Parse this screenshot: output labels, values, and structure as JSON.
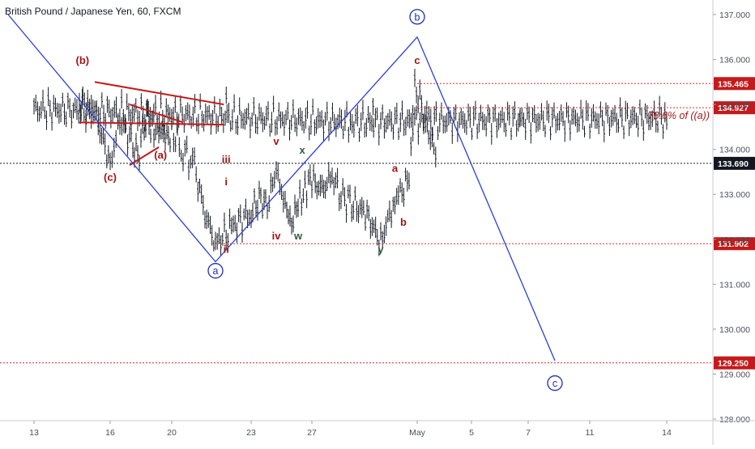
{
  "header": {
    "symbol_title": "British Pound / Japanese Yen, 60, FXCM"
  },
  "colors": {
    "wave_line": "#2a3fd6",
    "circle": "#1e2db0",
    "label_red": "#a31515",
    "label_green": "#2e5e3a",
    "level_line": "#e03030",
    "price_tag_bg": "#c41a1a",
    "current_tag_bg": "#131722",
    "candles": "#131722"
  },
  "chart_data": {
    "type": "line",
    "instrument": "GBPJPY",
    "timeframe": "60",
    "source": "FXCM",
    "y_axis": {
      "range": [
        127.95,
        137.35
      ],
      "ticks": [
        "137.000",
        "136.000",
        "135.000",
        "134.000",
        "133.000",
        "132.000",
        "131.000",
        "130.000",
        "129.000",
        "128.000"
      ]
    },
    "x_axis": {
      "ticks": [
        "13",
        "16",
        "20",
        "23",
        "27",
        "May",
        "5",
        "7",
        "11",
        "14"
      ]
    },
    "price_levels": [
      {
        "value": 135.465,
        "label": "135.465",
        "style": "dotted-red"
      },
      {
        "value": 134.927,
        "label": "134.927",
        "style": "dotted-red"
      },
      {
        "value": 133.69,
        "label": "133.690",
        "style": "dotted-black-current"
      },
      {
        "value": 131.902,
        "label": "131.902",
        "style": "dotted-red"
      },
      {
        "value": 129.25,
        "label": "129.250",
        "style": "dotted-red"
      }
    ],
    "annotation_fib": "78.6% of ((a))",
    "price_series": [
      {
        "t": "13",
        "p": 134.9
      },
      {
        "t": "13.5",
        "p": 134.6
      },
      {
        "t": "14",
        "p": 134.7
      },
      {
        "t": "14.5",
        "p": 134.9
      },
      {
        "t": "15",
        "p": 135.1
      },
      {
        "t": "15.5",
        "p": 134.8
      },
      {
        "t": "16",
        "p": 133.7
      },
      {
        "t": "16.5",
        "p": 134.6
      },
      {
        "t": "17",
        "p": 134.3
      },
      {
        "t": "17.5",
        "p": 133.8
      },
      {
        "t": "18",
        "p": 134.7
      },
      {
        "t": "18.5",
        "p": 134.4
      },
      {
        "t": "19",
        "p": 134.5
      },
      {
        "t": "19.5",
        "p": 134.2
      },
      {
        "t": "20",
        "p": 134.4
      },
      {
        "t": "20.5",
        "p": 134.0
      },
      {
        "t": "21",
        "p": 133.6
      },
      {
        "t": "21.5",
        "p": 132.6
      },
      {
        "t": "22",
        "p": 131.9
      },
      {
        "t": "22.5",
        "p": 132.3
      },
      {
        "t": "23",
        "p": 132.6
      },
      {
        "t": "23.5",
        "p": 132.9
      },
      {
        "t": "24",
        "p": 132.8
      },
      {
        "t": "24.5",
        "p": 133.5
      },
      {
        "t": "25",
        "p": 132.8
      },
      {
        "t": "25.5",
        "p": 132.4
      },
      {
        "t": "26",
        "p": 132.7
      },
      {
        "t": "26.5",
        "p": 133.2
      },
      {
        "t": "27",
        "p": 133.3
      },
      {
        "t": "27.5",
        "p": 133.1
      },
      {
        "t": "28",
        "p": 133.4
      },
      {
        "t": "28.5",
        "p": 133.0
      },
      {
        "t": "29",
        "p": 132.8
      },
      {
        "t": "29.5",
        "p": 132.6
      },
      {
        "t": "30",
        "p": 131.95
      },
      {
        "t": "30.5",
        "p": 132.9
      },
      {
        "t": "1",
        "p": 133.3
      },
      {
        "t": "1.2",
        "p": 135.4
      },
      {
        "t": "1.5",
        "p": 134.9
      },
      {
        "t": "2",
        "p": 133.7
      }
    ],
    "wave_path": [
      {
        "t": "12",
        "p": 137.0
      },
      {
        "t": "22",
        "p": 131.5
      },
      {
        "t": "May",
        "p": 136.5
      },
      {
        "t": "8",
        "p": 129.3
      }
    ],
    "wave_labels": [
      {
        "text": "(b)",
        "t": "15.1",
        "p": 135.9,
        "color": "red"
      },
      {
        "text": "(a)",
        "t": "13.2",
        "p": 133.8,
        "color": "red"
      },
      {
        "text": "(c)",
        "t": "16",
        "p": 133.3,
        "color": "red"
      },
      {
        "text": "iii",
        "t": "22.3",
        "p": 133.7,
        "color": "red"
      },
      {
        "text": "i",
        "t": "22.3",
        "p": 133.2,
        "color": "red"
      },
      {
        "text": "ii",
        "t": "22.3",
        "p": 131.7,
        "color": "red"
      },
      {
        "text": "v",
        "t": "24.5",
        "p": 134.1,
        "color": "red"
      },
      {
        "text": "iv",
        "t": "24.5",
        "p": 132.0,
        "color": "red"
      },
      {
        "text": "w",
        "t": "26",
        "p": 132.0,
        "color": "green"
      },
      {
        "text": "x",
        "t": "26.3",
        "p": 133.9,
        "color": "green"
      },
      {
        "text": "y",
        "t": "30",
        "p": 131.7,
        "color": "green"
      },
      {
        "text": "a",
        "t": "30.5",
        "p": 133.5,
        "color": "red"
      },
      {
        "text": "b",
        "t": "30.8",
        "p": 132.3,
        "color": "red"
      },
      {
        "text": "c",
        "t": "May",
        "p": 135.9,
        "color": "red"
      }
    ],
    "circle_labels": [
      {
        "text": "a",
        "t": "22",
        "p": 131.3
      },
      {
        "text": "b",
        "t": "May",
        "p": 136.95
      },
      {
        "text": "c",
        "t": "8",
        "p": 128.8
      }
    ],
    "trendlines": [
      {
        "from": {
          "t": "13.3",
          "p": 135.0
        },
        "to": {
          "t": "15.5",
          "p": 135.5
        }
      },
      {
        "from": {
          "t": "13.3",
          "p": 134.55
        },
        "to": {
          "t": "15",
          "p": 134.6
        }
      },
      {
        "from": {
          "t": "17",
          "p": 135.0
        },
        "to": {
          "t": "20.5",
          "p": 134.6
        }
      },
      {
        "from": {
          "t": "17",
          "p": 133.65
        },
        "to": {
          "t": "19",
          "p": 134.05
        }
      }
    ]
  }
}
